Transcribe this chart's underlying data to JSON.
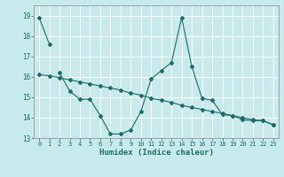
{
  "xlabel": "Humidex (Indice chaleur)",
  "background_color": "#c8eaea",
  "grid_color": "#ffffff",
  "line_color": "#1a6b6b",
  "xlim": [
    -0.5,
    23.5
  ],
  "ylim": [
    13,
    19.5
  ],
  "yticks": [
    13,
    14,
    15,
    16,
    17,
    18,
    19
  ],
  "xticks": [
    0,
    1,
    2,
    3,
    4,
    5,
    6,
    7,
    8,
    9,
    10,
    11,
    12,
    13,
    14,
    15,
    16,
    17,
    18,
    19,
    20,
    21,
    22,
    23
  ],
  "s1x": [
    0,
    1
  ],
  "s1y": [
    18.9,
    17.6
  ],
  "s2x": [
    2,
    3,
    4,
    5,
    6,
    7,
    8,
    9,
    10,
    11,
    12,
    13,
    14,
    15,
    16,
    17,
    18,
    19,
    20,
    21,
    22,
    23
  ],
  "s2y": [
    16.2,
    15.3,
    14.9,
    14.9,
    14.1,
    13.2,
    13.2,
    13.4,
    14.3,
    15.9,
    16.3,
    16.7,
    18.9,
    16.5,
    14.95,
    14.85,
    14.15,
    14.1,
    13.9,
    13.85,
    13.85,
    13.65
  ],
  "s3x": [
    0,
    1,
    2,
    3,
    4,
    5,
    6,
    7,
    8,
    9,
    10,
    11,
    12,
    13,
    14,
    15,
    16,
    17,
    18,
    19,
    20,
    21,
    22,
    23
  ],
  "s3y": [
    16.1,
    16.05,
    15.95,
    15.85,
    15.75,
    15.65,
    15.55,
    15.45,
    15.35,
    15.2,
    15.1,
    14.95,
    14.85,
    14.75,
    14.6,
    14.5,
    14.4,
    14.3,
    14.2,
    14.1,
    14.0,
    13.9,
    13.85,
    13.65
  ]
}
